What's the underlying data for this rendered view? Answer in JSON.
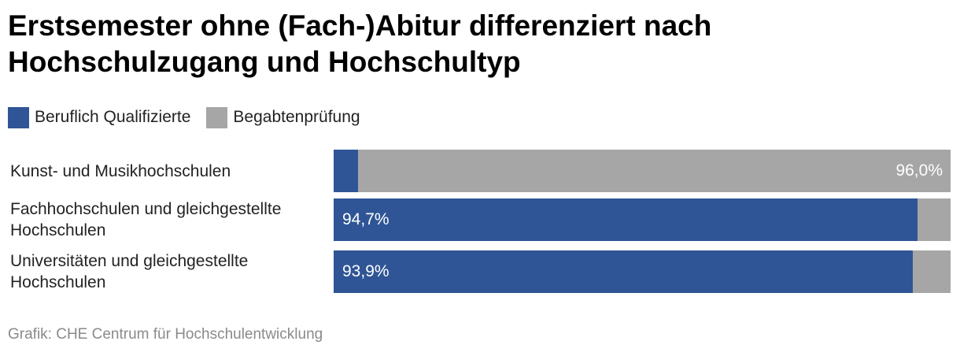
{
  "title": "Erstsemester ohne (Fach-)Abitur differenziert nach Hochschulzugang und Hochschultyp",
  "source": "Grafik: CHE Centrum für Hochschulentwicklung",
  "chart_data": {
    "type": "bar",
    "orientation": "horizontal",
    "stacked": true,
    "normalized_percent": true,
    "title": "Erstsemester ohne (Fach-)Abitur differenziert nach Hochschulzugang und Hochschultyp",
    "legend_position": "top-left",
    "grid": false,
    "xlim": [
      0,
      100
    ],
    "categories": [
      "Kunst- und Musikhochschulen",
      "Fachhochschulen und gleichgestellte Hochschulen",
      "Universitäten und gleichgestellte Hochschulen"
    ],
    "series": [
      {
        "name": "Beruflich Qualifizierte",
        "color": "#2f5596",
        "values": [
          4.0,
          94.7,
          93.9
        ],
        "labels": [
          "",
          "94,7%",
          "93,9%"
        ]
      },
      {
        "name": "Begabtenprüfung",
        "color": "#a6a6a6",
        "values": [
          96.0,
          5.3,
          6.1
        ],
        "labels": [
          "96,0%",
          "",
          ""
        ]
      }
    ]
  }
}
